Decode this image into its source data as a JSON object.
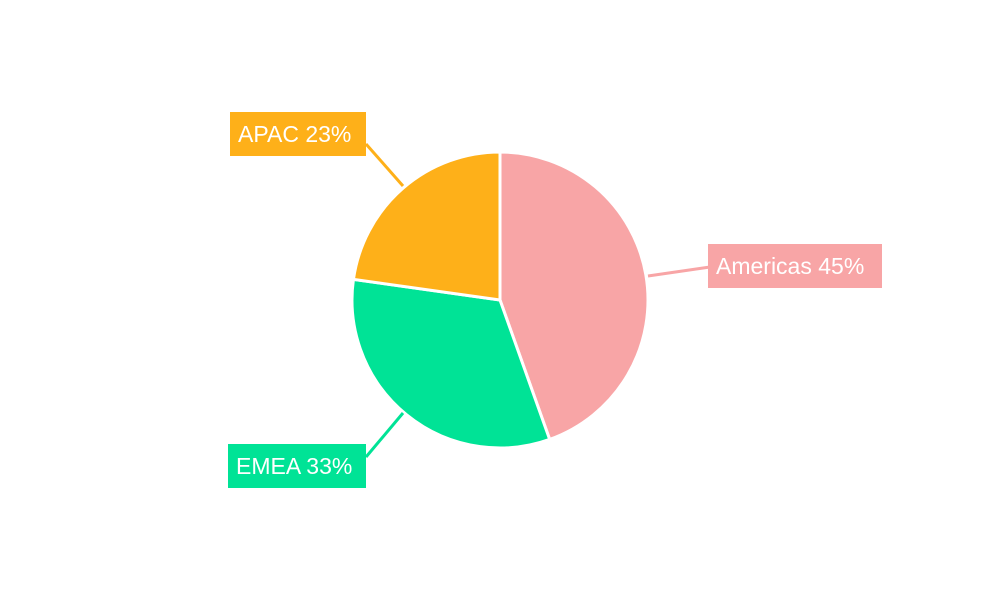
{
  "chart_data": {
    "type": "pie",
    "title": "",
    "categories": [
      "Americas",
      "EMEA",
      "APAC"
    ],
    "values": [
      45,
      33,
      23
    ],
    "unit": "%",
    "colors": [
      "#f8a5a6",
      "#00e396",
      "#feb019"
    ],
    "labels": [
      "Americas 45%",
      "EMEA 33%",
      "APAC 23%"
    ],
    "start_angle_deg": 0,
    "direction": "clockwise",
    "legend": "none",
    "label_style": "callout boxes with leader lines"
  },
  "labels": {
    "americas": "Americas 45%",
    "emea": "EMEA 33%",
    "apac": "APAC 23%"
  }
}
